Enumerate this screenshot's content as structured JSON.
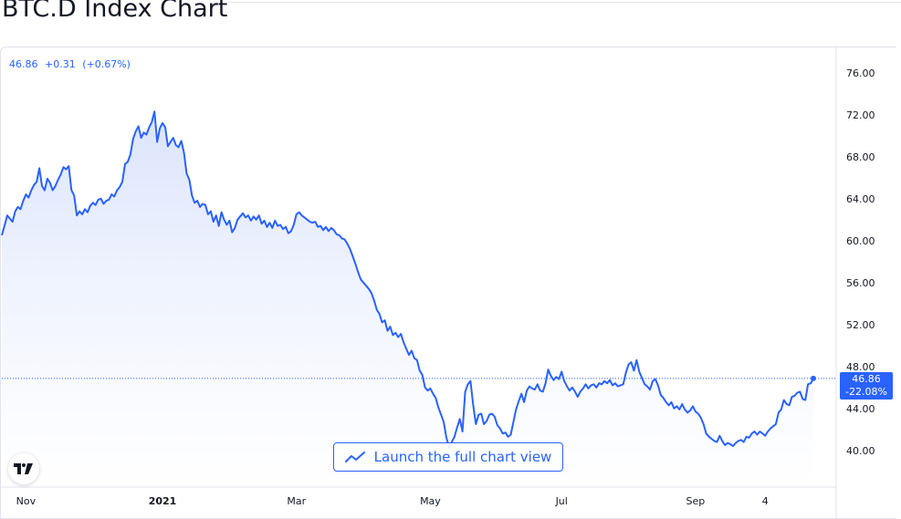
{
  "page": {
    "title": "BTC.D Index Chart"
  },
  "legend": {
    "value": "46.86",
    "change": "+0.31",
    "change_pct": "(+0.67%)"
  },
  "price_tag": {
    "value": "46.86",
    "change_pct": "-22.08%"
  },
  "button": {
    "label": "Launch the full chart view",
    "icon": "trend-line-icon"
  },
  "logo": {
    "name": "tradingview-logo",
    "text": "TV"
  },
  "colors": {
    "line": "#2962ff",
    "fill_top": "#dbe4fc",
    "fill_bottom": "#ffffff",
    "axis_text": "#131722",
    "border": "#e0e3eb"
  },
  "chart_data": {
    "type": "area",
    "title": "BTC.D Index Chart",
    "y_ticks": [
      "76.00",
      "72.00",
      "68.00",
      "64.00",
      "60.00",
      "56.00",
      "52.00",
      "48.00",
      "44.00",
      "40.00"
    ],
    "x_ticks": [
      "Nov",
      "2021",
      "Mar",
      "May",
      "Jul",
      "Sep",
      "4"
    ],
    "x_tick_index": [
      9,
      60,
      110,
      160,
      209,
      259,
      285
    ],
    "ylim": [
      36.5,
      78.5
    ],
    "last_value": 46.86,
    "grid": false,
    "series": [
      {
        "values": [
          60.5,
          61.4,
          62.4,
          62.1,
          61.8,
          62.8,
          63.2,
          63.0,
          63.8,
          64.4,
          64.1,
          64.8,
          65.3,
          65.6,
          66.9,
          65.2,
          64.8,
          65.9,
          65.5,
          64.8,
          65.2,
          65.8,
          66.3,
          67.0,
          66.8,
          67.1,
          64.8,
          64.3,
          62.4,
          62.8,
          62.5,
          63.0,
          62.7,
          63.3,
          63.6,
          63.4,
          63.9,
          64.0,
          63.5,
          63.8,
          63.9,
          64.4,
          64.2,
          64.8,
          65.1,
          65.6,
          67.3,
          67.5,
          68.2,
          69.7,
          70.4,
          70.9,
          69.8,
          70.3,
          70.1,
          70.8,
          71.3,
          72.3,
          69.4,
          70.7,
          71.2,
          70.8,
          69.0,
          69.4,
          69.8,
          69.1,
          68.9,
          69.5,
          68.4,
          66.4,
          65.8,
          64.3,
          63.6,
          63.8,
          63.2,
          63.5,
          63.4,
          62.5,
          62.8,
          61.8,
          62.4,
          61.4,
          62.7,
          62.0,
          61.5,
          61.9,
          60.8,
          61.2,
          62.0,
          62.3,
          62.6,
          62.2,
          62.4,
          61.9,
          62.3,
          62.0,
          62.4,
          61.6,
          61.9,
          61.3,
          61.7,
          61.2,
          61.9,
          61.4,
          61.5,
          61.1,
          61.3,
          60.7,
          60.9,
          61.5,
          62.5,
          62.7,
          62.4,
          62.2,
          62.0,
          61.8,
          61.7,
          61.8,
          61.3,
          61.4,
          61.0,
          61.3,
          60.9,
          61.2,
          61.0,
          60.6,
          60.5,
          60.2,
          60.1,
          59.7,
          59.2,
          58.5,
          57.8,
          57.0,
          56.3,
          56.0,
          55.7,
          55.4,
          55.0,
          54.3,
          53.4,
          53.0,
          52.2,
          52.4,
          51.4,
          51.8,
          51.0,
          51.2,
          50.8,
          51.1,
          50.3,
          49.7,
          49.1,
          49.5,
          48.8,
          48.6,
          47.6,
          47.2,
          46.0,
          45.7,
          45.9,
          45.4,
          45.0,
          44.1,
          43.4,
          42.7,
          41.2,
          40.3,
          40.8,
          41.3,
          42.2,
          43.0,
          41.8,
          45.6,
          46.3,
          46.6,
          44.3,
          42.5,
          43.4,
          43.5,
          42.5,
          42.8,
          43.4,
          43.5,
          43.2,
          42.4,
          42.1,
          41.6,
          41.7,
          41.3,
          41.5,
          42.7,
          43.9,
          44.7,
          45.4,
          44.6,
          45.7,
          46.1,
          45.9,
          45.8,
          46.3,
          45.7,
          45.6,
          46.4,
          47.7,
          47.1,
          46.7,
          47.0,
          46.8,
          47.5,
          46.6,
          46.1,
          45.7,
          46.0,
          45.6,
          45.1,
          45.6,
          45.9,
          46.3,
          45.9,
          46.2,
          46.3,
          46.0,
          46.4,
          46.3,
          46.6,
          46.4,
          46.7,
          46.2,
          46.4,
          46.1,
          46.2,
          46.3,
          47.4,
          48.2,
          48.4,
          47.6,
          48.6,
          47.5,
          46.9,
          46.3,
          46.1,
          45.8,
          46.6,
          46.8,
          46.2,
          45.3,
          45.0,
          44.6,
          44.3,
          44.6,
          44.0,
          44.2,
          43.9,
          44.4,
          43.9,
          43.6,
          43.8,
          44.2,
          43.7,
          43.5,
          43.1,
          42.5,
          41.6,
          41.3,
          41.1,
          40.9,
          40.8,
          41.4,
          40.9,
          40.5,
          40.7,
          40.6,
          40.4,
          40.7,
          40.9,
          41.0,
          40.8,
          41.3,
          41.2,
          41.6,
          41.8,
          41.5,
          41.8,
          41.6,
          41.4,
          41.8,
          42.1,
          42.3,
          42.5,
          43.6,
          43.9,
          44.8,
          44.4,
          44.3,
          45.1,
          45.2,
          45.5,
          45.6,
          44.9,
          44.8,
          46.3,
          46.4,
          46.86
        ]
      }
    ]
  }
}
